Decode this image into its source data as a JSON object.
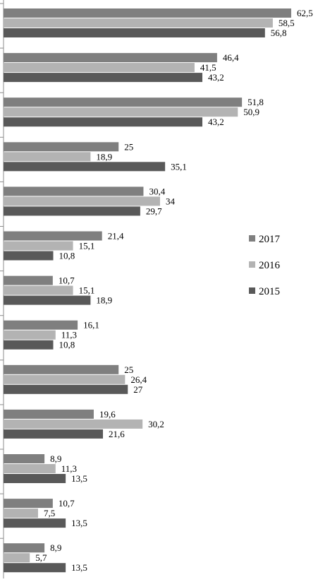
{
  "chart_data": {
    "type": "bar",
    "orientation": "horizontal",
    "xlim": [
      0,
      70
    ],
    "grid": false,
    "legend_position": "right",
    "series": [
      {
        "name": "2017",
        "color": "#7f7f7f",
        "values": [
          62.5,
          46.4,
          51.8,
          25,
          30.4,
          21.4,
          10.7,
          16.1,
          25,
          19.6,
          8.9,
          10.7,
          8.9
        ]
      },
      {
        "name": "2016",
        "color": "#b3b3b3",
        "values": [
          58.5,
          41.5,
          50.9,
          18.9,
          34,
          15.1,
          15.1,
          11.3,
          26.4,
          30.2,
          11.3,
          7.5,
          5.7
        ]
      },
      {
        "name": "2015",
        "color": "#595959",
        "values": [
          56.8,
          43.2,
          43.2,
          35.1,
          29.7,
          10.8,
          18.9,
          10.8,
          27,
          21.6,
          13.5,
          13.5,
          13.5
        ]
      }
    ],
    "value_labels": [
      [
        "62,5",
        "46,4",
        "51,8",
        "25",
        "30,4",
        "21,4",
        "10,7",
        "16,1",
        "25",
        "19,6",
        "8,9",
        "10,7",
        "8,9"
      ],
      [
        "58,5",
        "41,5",
        "50,9",
        "18,9",
        "34",
        "15,1",
        "15,1",
        "11,3",
        "26,4",
        "30,2",
        "11,3",
        "7,5",
        "5,7"
      ],
      [
        "56,8",
        "43,2",
        "43,2",
        "35,1",
        "29,7",
        "10,8",
        "18,9",
        "10,8",
        "27",
        "21,6",
        "13,5",
        "13,5",
        "13,5"
      ]
    ]
  }
}
